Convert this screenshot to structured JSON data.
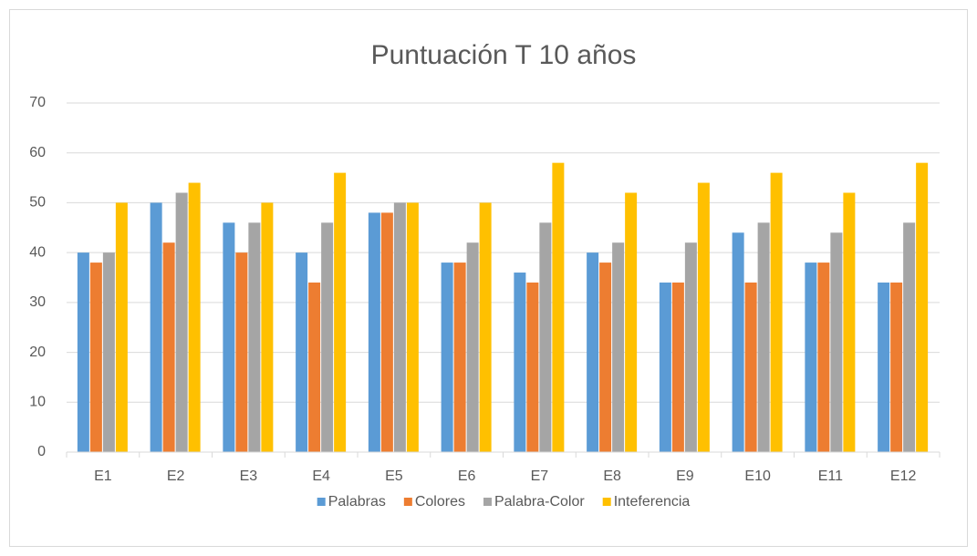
{
  "chart_data": {
    "type": "bar",
    "title": "Puntuación T 10 años",
    "categories": [
      "E1",
      "E2",
      "E3",
      "E4",
      "E5",
      "E6",
      "E7",
      "E8",
      "E9",
      "E10",
      "E11",
      "E12"
    ],
    "series": [
      {
        "name": "Palabras",
        "color": "#5b9bd5",
        "values": [
          40,
          50,
          46,
          40,
          48,
          38,
          36,
          40,
          34,
          44,
          38,
          34
        ]
      },
      {
        "name": "Colores",
        "color": "#ed7d31",
        "values": [
          38,
          42,
          40,
          34,
          48,
          38,
          34,
          38,
          34,
          34,
          38,
          34
        ]
      },
      {
        "name": "Palabra-Color",
        "color": "#a5a5a5",
        "values": [
          40,
          52,
          46,
          46,
          50,
          42,
          46,
          42,
          42,
          46,
          44,
          46
        ]
      },
      {
        "name": "Inteferencia",
        "color": "#ffc000",
        "values": [
          50,
          54,
          50,
          56,
          50,
          50,
          58,
          52,
          54,
          56,
          52,
          58
        ]
      }
    ],
    "ylim": [
      0,
      70
    ],
    "yticks": [
      0,
      10,
      20,
      30,
      40,
      50,
      60,
      70
    ],
    "grid": true,
    "legend": "bottom"
  }
}
